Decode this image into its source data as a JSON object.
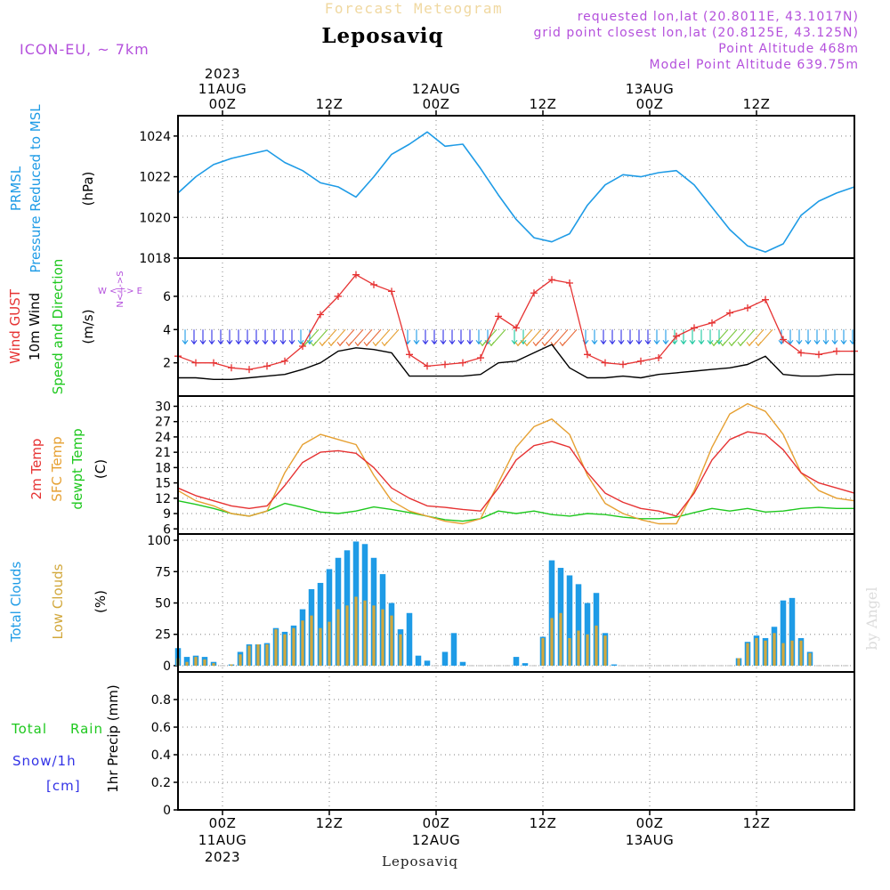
{
  "header": {
    "title_faint": "Forecast Meteogram",
    "location": "Leposaviq",
    "model": "ICON-EU, ~ 7km",
    "requested": "requested lon,lat (20.8011E, 43.1017N)",
    "grid_point": "grid point closest lon,lat (20.8125E, 43.125N)",
    "point_altitude": "Point Altitude 468m",
    "model_altitude": "Model Point Altitude 639.75m",
    "footer_location": "Leposaviq",
    "watermark": "by Angel"
  },
  "time_axis": {
    "top_labels": [
      {
        "lines": [
          "2023",
          "11AUG",
          "00Z"
        ]
      },
      {
        "lines": [
          "12Z"
        ]
      },
      {
        "lines": [
          "12AUG",
          "00Z"
        ]
      },
      {
        "lines": [
          "12Z"
        ]
      },
      {
        "lines": [
          "13AUG",
          "00Z"
        ]
      },
      {
        "lines": [
          "12Z"
        ]
      }
    ],
    "bottom_labels": [
      {
        "lines": [
          "00Z",
          "11AUG",
          "2023"
        ]
      },
      {
        "lines": [
          "12Z"
        ]
      },
      {
        "lines": [
          "00Z",
          "12AUG"
        ]
      },
      {
        "lines": [
          "12Z"
        ]
      },
      {
        "lines": [
          "00Z",
          "13AUG"
        ]
      },
      {
        "lines": [
          "12Z"
        ]
      }
    ],
    "hours_at_labels": [
      0,
      12,
      24,
      36,
      48,
      60
    ],
    "range_hours": [
      -5,
      71
    ]
  },
  "colors": {
    "pressure": "#1e9be6",
    "gust": "#e63232",
    "wind": "#000000",
    "temp2m": "#e63232",
    "sfc_temp": "#e6a032",
    "dewpoint": "#1ec81e",
    "total_clouds": "#1e9be6",
    "low_clouds": "#d2a83c",
    "rain": "#1ec81e",
    "snow": "#3232e6",
    "purple": "#b450dc"
  },
  "panel_labels": {
    "pressure": {
      "lines": [
        "PRMSL",
        "Pressure Reduced to MSL"
      ],
      "unit": "(hPa)"
    },
    "wind": {
      "gust": "Wind GUST",
      "wind10": "10m Wind",
      "dir": "Speed and Direction",
      "unit": "(m/s)",
      "compass": "W <-|-> E",
      "compass_v": "N<-|->S"
    },
    "temp": {
      "t2m": "2m Temp",
      "sfc": "SFC Temp",
      "dew": "dewpt Temp",
      "unit": "(C)"
    },
    "clouds": {
      "total": "Total Clouds",
      "low": "Low Clouds",
      "unit": "(%)"
    },
    "precip": {
      "total": "Total",
      "rain": "Rain",
      "snow": "Snow/1h",
      "snow_unit": "[cm]",
      "unit": "1hr Precip (mm)"
    }
  },
  "chart_data": [
    {
      "type": "line",
      "title": "PRMSL Pressure Reduced to MSL",
      "ylabel": "(hPa)",
      "ylim": [
        1018,
        1025
      ],
      "yticks": [
        1018,
        1020,
        1022,
        1024
      ],
      "x": [
        -5,
        -3,
        -1,
        1,
        3,
        5,
        7,
        9,
        11,
        13,
        15,
        17,
        19,
        21,
        23,
        25,
        27,
        29,
        31,
        33,
        35,
        37,
        39,
        41,
        43,
        45,
        47,
        49,
        51,
        53,
        55,
        57,
        59,
        61,
        63,
        65,
        67,
        69,
        71
      ],
      "series": [
        {
          "name": "PRMSL",
          "values": [
            1021.2,
            1022.0,
            1022.6,
            1022.9,
            1023.1,
            1023.3,
            1022.7,
            1022.3,
            1021.7,
            1021.5,
            1021.0,
            1022.0,
            1023.1,
            1023.6,
            1024.2,
            1023.5,
            1023.6,
            1022.4,
            1021.1,
            1019.9,
            1019.0,
            1018.8,
            1019.2,
            1020.6,
            1021.6,
            1022.1,
            1022.0,
            1022.2,
            1022.3,
            1021.6,
            1020.5,
            1019.4,
            1018.6,
            1018.3,
            1018.7,
            1020.1,
            1020.8,
            1021.2,
            1021.5
          ]
        }
      ]
    },
    {
      "type": "line",
      "title": "Wind GUST / 10m Wind Speed and Direction",
      "ylabel": "(m/s)",
      "ylim": [
        0,
        8.3
      ],
      "yticks": [
        2,
        4,
        6
      ],
      "x": [
        -5,
        -3,
        -1,
        1,
        3,
        5,
        7,
        9,
        11,
        13,
        15,
        17,
        19,
        21,
        23,
        25,
        27,
        29,
        31,
        33,
        35,
        37,
        39,
        41,
        43,
        45,
        47,
        49,
        51,
        53,
        55,
        57,
        59,
        61,
        63,
        65,
        67,
        69,
        71
      ],
      "series": [
        {
          "name": "Wind GUST",
          "values": [
            2.4,
            2.0,
            2.0,
            1.7,
            1.6,
            1.8,
            2.1,
            3.0,
            4.9,
            6.0,
            7.3,
            6.7,
            6.3,
            2.5,
            1.8,
            1.9,
            2.0,
            2.3,
            4.8,
            4.1,
            6.2,
            7.0,
            6.8,
            2.5,
            2.0,
            1.9,
            2.1,
            2.3,
            3.6,
            4.1,
            4.4,
            5.0,
            5.3,
            5.8,
            3.4,
            2.6,
            2.5,
            2.7,
            2.7
          ]
        },
        {
          "name": "10m Wind",
          "values": [
            1.1,
            1.1,
            1.0,
            1.0,
            1.1,
            1.2,
            1.3,
            1.6,
            2.0,
            2.7,
            2.9,
            2.8,
            2.6,
            1.2,
            1.2,
            1.2,
            1.2,
            1.3,
            2.0,
            2.1,
            2.6,
            3.1,
            1.7,
            1.1,
            1.1,
            1.2,
            1.1,
            1.3,
            1.4,
            1.5,
            1.6,
            1.7,
            1.9,
            2.4,
            1.3,
            1.2,
            1.2,
            1.3,
            1.3
          ]
        }
      ]
    },
    {
      "type": "line",
      "title": "2m Temp / SFC Temp / dewpt Temp",
      "ylabel": "(C)",
      "ylim": [
        5,
        32
      ],
      "yticks": [
        6,
        9,
        12,
        15,
        18,
        21,
        24,
        27,
        30
      ],
      "x": [
        -5,
        -3,
        -1,
        1,
        3,
        5,
        7,
        9,
        11,
        13,
        15,
        17,
        19,
        21,
        23,
        25,
        27,
        29,
        31,
        33,
        35,
        37,
        39,
        41,
        43,
        45,
        47,
        49,
        51,
        53,
        55,
        57,
        59,
        61,
        63,
        65,
        67,
        69,
        71
      ],
      "series": [
        {
          "name": "2m Temp",
          "values": [
            14.0,
            12.5,
            11.5,
            10.5,
            10.0,
            10.5,
            14.5,
            19.0,
            21.0,
            21.3,
            20.8,
            18.0,
            14.0,
            12.0,
            10.5,
            10.2,
            9.8,
            9.5,
            14.0,
            19.5,
            22.3,
            23.1,
            22.0,
            17.0,
            13.0,
            11.2,
            10.0,
            9.5,
            8.5,
            13.0,
            19.5,
            23.5,
            25.0,
            24.5,
            21.5,
            17.0,
            15.0,
            14.0,
            13.0
          ]
        },
        {
          "name": "SFC Temp",
          "values": [
            13.5,
            11.5,
            10.5,
            9.0,
            8.5,
            9.5,
            17.0,
            22.5,
            24.5,
            23.5,
            22.5,
            16.5,
            11.5,
            9.5,
            8.5,
            7.5,
            7.0,
            8.0,
            15.0,
            22.0,
            26.0,
            27.5,
            24.5,
            16.5,
            11.0,
            9.0,
            7.8,
            7.0,
            7.0,
            13.5,
            22.0,
            28.5,
            30.5,
            29.0,
            24.5,
            17.0,
            13.5,
            12.0,
            11.5
          ]
        },
        {
          "name": "dewpt Temp",
          "values": [
            11.5,
            10.8,
            10.0,
            9.0,
            8.5,
            9.5,
            11.0,
            10.2,
            9.3,
            9.0,
            9.5,
            10.3,
            9.8,
            9.2,
            8.5,
            7.8,
            7.5,
            8.0,
            9.5,
            9.0,
            9.5,
            8.8,
            8.5,
            9.0,
            8.8,
            8.3,
            8.0,
            8.0,
            8.3,
            9.2,
            10.0,
            9.5,
            10.0,
            9.3,
            9.5,
            10.0,
            10.2,
            10.0,
            10.0
          ]
        }
      ]
    },
    {
      "type": "bar",
      "title": "Total Clouds / Low Clouds",
      "ylabel": "(%)",
      "ylim": [
        -5,
        105
      ],
      "yticks": [
        0,
        25,
        50,
        75,
        100
      ],
      "x": [
        -5,
        -4,
        -3,
        -2,
        -1,
        0,
        1,
        2,
        3,
        4,
        5,
        6,
        7,
        8,
        9,
        10,
        11,
        12,
        13,
        14,
        15,
        16,
        17,
        18,
        19,
        20,
        21,
        22,
        23,
        24,
        25,
        26,
        27,
        28,
        29,
        30,
        31,
        32,
        33,
        34,
        35,
        36,
        37,
        38,
        39,
        40,
        41,
        42,
        43,
        44,
        45,
        46,
        47,
        48,
        49,
        50,
        51,
        52,
        53,
        54,
        55,
        56,
        57,
        58,
        59,
        60,
        61,
        62,
        63,
        64,
        65,
        66,
        67,
        68,
        69,
        70
      ],
      "series": [
        {
          "name": "Total Clouds",
          "values": [
            14,
            7,
            8,
            7,
            3,
            0,
            1,
            11,
            17,
            17,
            18,
            30,
            27,
            32,
            45,
            61,
            66,
            77,
            86,
            92,
            99,
            97,
            86,
            73,
            50,
            29,
            42,
            8,
            4,
            0,
            11,
            26,
            3,
            0,
            0,
            0,
            0,
            0,
            7,
            2,
            0,
            23,
            84,
            78,
            72,
            65,
            50,
            58,
            26,
            1,
            0,
            0,
            0,
            0,
            0,
            0,
            0,
            0,
            0,
            0,
            0,
            0,
            0,
            6,
            19,
            24,
            22,
            31,
            52,
            54,
            22,
            11,
            0,
            0,
            0,
            0
          ]
        },
        {
          "name": "Low Clouds",
          "values": [
            6,
            3,
            7,
            5,
            2,
            0,
            1,
            9,
            16,
            17,
            17,
            29,
            25,
            30,
            36,
            40,
            30,
            35,
            45,
            48,
            55,
            52,
            48,
            45,
            40,
            25,
            0,
            0,
            0,
            0,
            0,
            0,
            0,
            0,
            0,
            0,
            0,
            0,
            0,
            0,
            0,
            22,
            38,
            42,
            22,
            28,
            25,
            32,
            24,
            0,
            0,
            0,
            0,
            0,
            0,
            0,
            0,
            0,
            0,
            0,
            0,
            0,
            0,
            6,
            18,
            22,
            20,
            26,
            18,
            20,
            20,
            10,
            0,
            0,
            0,
            0
          ]
        }
      ]
    },
    {
      "type": "bar",
      "title": "1hr Precip (mm)",
      "ylabel": "1hr Precip (mm)",
      "ylim": [
        0,
        1.0
      ],
      "yticks": [
        0,
        0.2,
        0.4,
        0.6,
        0.8
      ],
      "series": [
        {
          "name": "Total",
          "values": []
        },
        {
          "name": "Rain",
          "values": []
        },
        {
          "name": "Snow/1h",
          "values": []
        }
      ]
    }
  ]
}
